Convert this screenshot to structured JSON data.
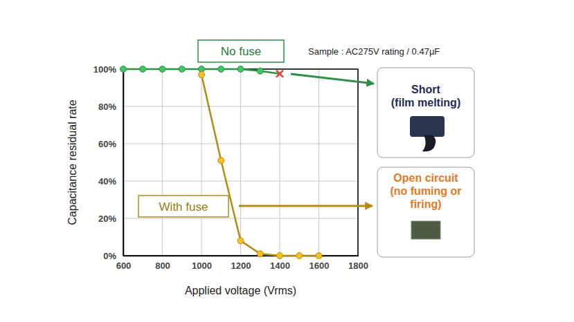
{
  "chart_data": {
    "type": "line",
    "subtitle": "Sample : AC275V rating / 0.47μF",
    "x_label": "Applied voltage (Vrms)",
    "y_label": "Capacitance residual rate",
    "xlim": [
      600,
      1800
    ],
    "xticks": [
      600,
      800,
      1000,
      1200,
      1400,
      1600,
      1800
    ],
    "ylim": [
      0,
      100
    ],
    "yticks": [
      {
        "value": 0,
        "label": "0%"
      },
      {
        "value": 20,
        "label": "20%"
      },
      {
        "value": 40,
        "label": "40%"
      },
      {
        "value": 60,
        "label": "60%"
      },
      {
        "value": 80,
        "label": "80%"
      },
      {
        "value": 100,
        "label": "100%"
      }
    ],
    "grid": true,
    "series": [
      {
        "name": "No fuse",
        "color": "#2f8f46",
        "marker": "circle",
        "colors": [
          "#2f8f46",
          "#2f8f46",
          "#2f8f46",
          "#2f8f46",
          "#2f8f46",
          "#2f8f46",
          "#2f8f46",
          "#2f8f46",
          "#e0473a"
        ],
        "x": [
          600,
          700,
          800,
          900,
          1000,
          1100,
          1200,
          1300,
          1400
        ],
        "values": [
          100,
          100,
          100,
          100,
          100,
          100,
          100,
          99,
          97.5
        ]
      },
      {
        "name": "With fuse",
        "color": "#b38b14",
        "marker": "circle",
        "x": [
          1000,
          1100,
          1200,
          1300,
          1400,
          1500,
          1600
        ],
        "values": [
          97,
          51,
          8,
          1,
          0,
          0,
          0
        ]
      }
    ],
    "annotations": [
      {
        "lines": [
          "Short",
          "(film melting)"
        ]
      },
      {
        "lines": [
          "Open circuit",
          "(no fuming or",
          "firing)"
        ]
      }
    ]
  }
}
